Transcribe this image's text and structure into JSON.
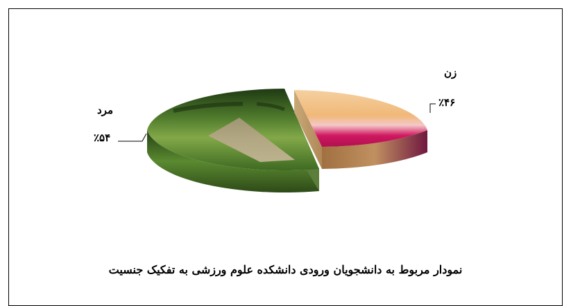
{
  "chart_data": {
    "type": "pie",
    "title": "نمودار مربوط به دانشجویان ورودی دانشکده علوم ورزشی به تفکیک جنسیت",
    "slices": [
      {
        "category": "زن",
        "value": 46,
        "value_label": "٪۴۶",
        "color": "#e8b070"
      },
      {
        "category": "مرد",
        "value": 54,
        "value_label": "٪۵۴",
        "color": "#5a8a3a"
      }
    ],
    "style": "3d exploded pie"
  }
}
